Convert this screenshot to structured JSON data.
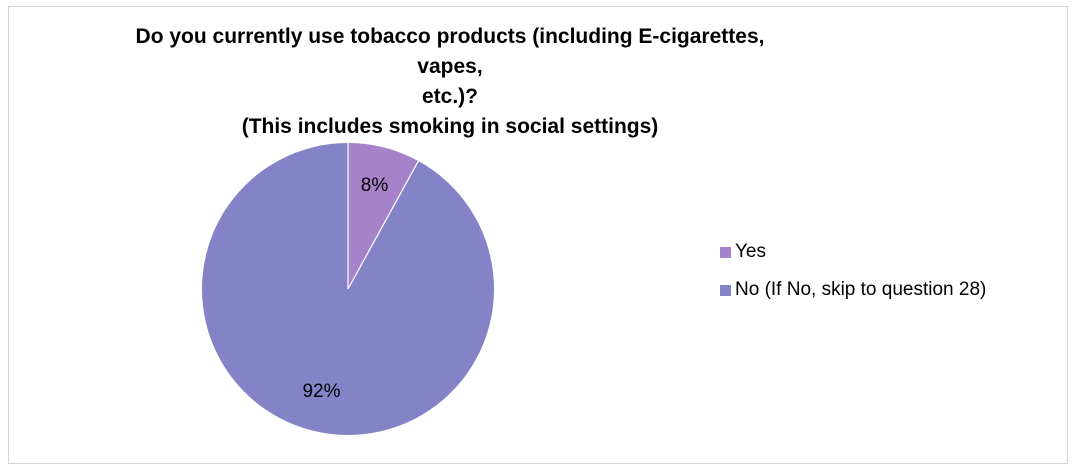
{
  "chart_data": {
    "type": "pie",
    "title_lines": [
      "Do you currently use tobacco products (including E-cigarettes, vapes,",
      "etc.)?",
      "(This includes smoking in social settings)"
    ],
    "slices": [
      {
        "label": "Yes",
        "value": 8,
        "display": "8%",
        "color": "#a682c8"
      },
      {
        "label": "No (If No, skip to question 28)",
        "value": 92,
        "display": "92%",
        "color": "#8583c8"
      }
    ],
    "legend": "right"
  }
}
